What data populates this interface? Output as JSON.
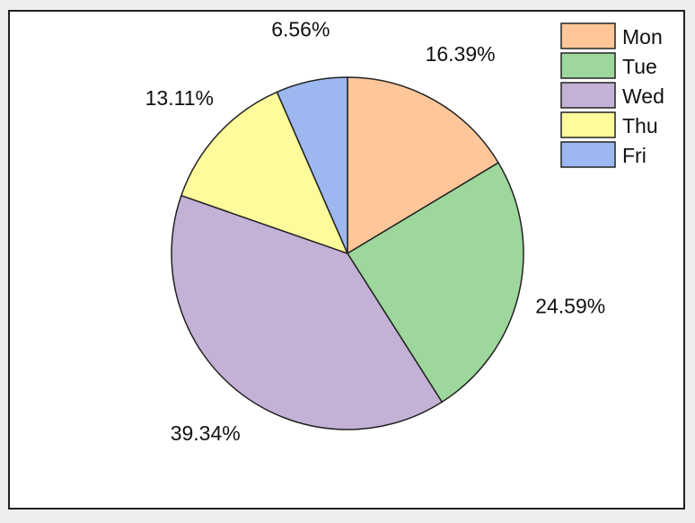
{
  "chart_data": {
    "type": "pie",
    "title": "",
    "categories": [
      "Mon",
      "Tue",
      "Wed",
      "Thu",
      "Fri"
    ],
    "values": [
      16.39,
      24.59,
      39.34,
      13.11,
      6.56
    ],
    "labels": [
      "16.39%",
      "24.59%",
      "39.34%",
      "13.11%",
      "6.56%"
    ],
    "colors": [
      "#ffc799",
      "#9dd79c",
      "#c3b1d6",
      "#fdfb9b",
      "#9db8f0"
    ],
    "start_angle_deg": 0,
    "direction": "clockwise",
    "legend": {
      "position": "top-right",
      "entries": [
        "Mon",
        "Tue",
        "Wed",
        "Thu",
        "Fri"
      ]
    }
  }
}
